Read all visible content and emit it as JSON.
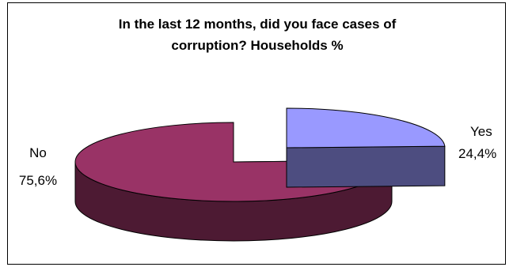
{
  "chart_data": {
    "type": "pie",
    "style": "3d-exploded",
    "title": "In the last 12 months, did you face cases of corruption? Households %",
    "title_lines": [
      "In the last 12 months, did you face cases of",
      "corruption? Households %"
    ],
    "categories": [
      "Yes",
      "No"
    ],
    "values": [
      24.4,
      75.6
    ],
    "value_labels": [
      "24,4%",
      "75,6%"
    ],
    "colors": {
      "Yes": {
        "top": "#9999ff",
        "side": "#4d4d80"
      },
      "No": {
        "top": "#993366",
        "side": "#4d1a33"
      }
    },
    "legend": "none"
  }
}
